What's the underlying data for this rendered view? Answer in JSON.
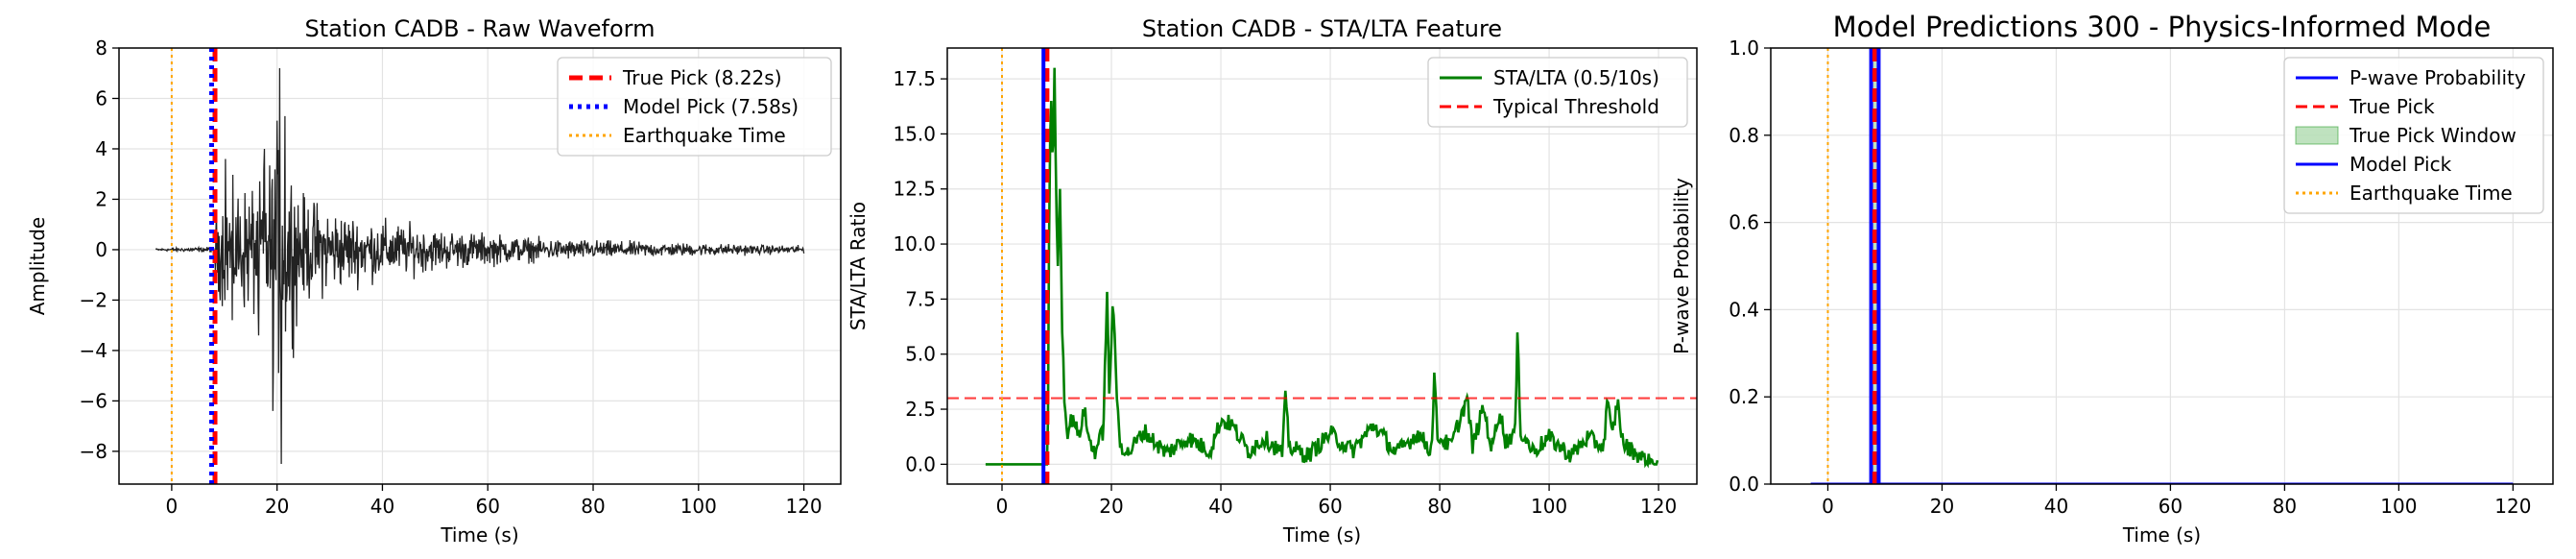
{
  "chart_data": [
    {
      "type": "line",
      "title": "Station CADB - Raw Waveform",
      "xlabel": "Time (s)",
      "ylabel": "Amplitude",
      "xlim": [
        -10,
        127
      ],
      "ylim": [
        -9.3,
        8
      ],
      "xticks": [
        0,
        20,
        40,
        60,
        80,
        100,
        120
      ],
      "yticks": [
        -8,
        -6,
        -4,
        -2,
        0,
        2,
        4,
        6,
        8
      ],
      "grid": true,
      "legend_position": "top-right",
      "legend": [
        {
          "label": "True Pick (8.22s)",
          "color": "#ff0000",
          "style": "dashed-thick"
        },
        {
          "label": "Model Pick (7.58s)",
          "color": "#0000ff",
          "style": "dotted-thick"
        },
        {
          "label": "Earthquake Time",
          "color": "#ffa500",
          "style": "dotted"
        }
      ],
      "vlines": [
        {
          "x": 8.22,
          "color": "#ff0000",
          "style": "dashed-thick"
        },
        {
          "x": 7.58,
          "color": "#0000ff",
          "style": "dotted-thick"
        },
        {
          "x": 0,
          "color": "#ffa500",
          "style": "dotted"
        }
      ],
      "waveform_series": {
        "color": "#222222",
        "time_range": [
          -3,
          120
        ],
        "envelope_keypoints": [
          [
            -3,
            0.06
          ],
          [
            8,
            0.15
          ],
          [
            8.2,
            2.0
          ],
          [
            10,
            3.0
          ],
          [
            15,
            3.5
          ],
          [
            19,
            5.0
          ],
          [
            20.5,
            7.2
          ],
          [
            21,
            6.0
          ],
          [
            25,
            2.8
          ],
          [
            35,
            1.8
          ],
          [
            50,
            1.1
          ],
          [
            70,
            0.6
          ],
          [
            90,
            0.4
          ],
          [
            120,
            0.2
          ]
        ],
        "peaks": [
          [
            20.5,
            7.2
          ],
          [
            20.8,
            -8.5
          ],
          [
            19.2,
            -6.4
          ],
          [
            21.5,
            5.3
          ],
          [
            17.6,
            4.0
          ],
          [
            10.2,
            3.6
          ],
          [
            16.5,
            -3.4
          ],
          [
            11.5,
            -2.8
          ]
        ]
      }
    },
    {
      "type": "line",
      "title": "Station CADB - STA/LTA Feature",
      "xlabel": "Time (s)",
      "ylabel": "STA/LTA Ratio",
      "xlim": [
        -10,
        127
      ],
      "ylim": [
        -0.9,
        18.9
      ],
      "xticks": [
        0,
        20,
        40,
        60,
        80,
        100,
        120
      ],
      "yticks": [
        0.0,
        2.5,
        5.0,
        7.5,
        10.0,
        12.5,
        15.0,
        17.5
      ],
      "grid": true,
      "legend_position": "top-right",
      "legend": [
        {
          "label": "STA/LTA (0.5/10s)",
          "color": "#008000",
          "style": "solid"
        },
        {
          "label": "Typical Threshold",
          "color": "#ff0000",
          "style": "dashed"
        }
      ],
      "threshold": 3.0,
      "vlines": [
        {
          "x": 8.22,
          "color": "#ff0000",
          "style": "dashed-thick"
        },
        {
          "x": 7.58,
          "color": "#0000ff",
          "style": "solid-thick"
        },
        {
          "x": 0,
          "color": "#ffa500",
          "style": "dotted"
        }
      ],
      "sta_lta_series": {
        "color": "#008000",
        "keypoints": [
          [
            -3,
            0
          ],
          [
            8.2,
            0
          ],
          [
            8.4,
            2
          ],
          [
            8.7,
            14
          ],
          [
            9.0,
            16.5
          ],
          [
            9.3,
            13
          ],
          [
            9.6,
            18
          ],
          [
            9.9,
            12
          ],
          [
            10.2,
            9
          ],
          [
            10.6,
            12.5
          ],
          [
            11,
            6
          ],
          [
            11.5,
            2.5
          ],
          [
            12,
            1.5
          ],
          [
            13,
            2.2
          ],
          [
            14,
            1.2
          ],
          [
            15,
            2.5
          ],
          [
            16,
            1.0
          ],
          [
            17,
            0.6
          ],
          [
            18.5,
            1.5
          ],
          [
            19.2,
            7.8
          ],
          [
            19.6,
            3
          ],
          [
            20.3,
            7.8
          ],
          [
            20.8,
            4
          ],
          [
            21.5,
            1
          ],
          [
            23,
            0.5
          ],
          [
            26,
            1.5
          ],
          [
            30,
            0.5
          ],
          [
            34,
            1.2
          ],
          [
            38,
            0.6
          ],
          [
            40,
            2
          ],
          [
            42,
            1.8
          ],
          [
            45,
            0.6
          ],
          [
            48,
            1.2
          ],
          [
            51.2,
            0.5
          ],
          [
            51.8,
            3.0
          ],
          [
            52.5,
            0.8
          ],
          [
            56,
            0.4
          ],
          [
            60,
            1.4
          ],
          [
            64,
            0.6
          ],
          [
            68,
            1.8
          ],
          [
            72,
            0.5
          ],
          [
            76,
            1.4
          ],
          [
            78.5,
            0.6
          ],
          [
            79,
            4.0
          ],
          [
            79.6,
            1.3
          ],
          [
            82,
            0.8
          ],
          [
            85,
            3.0
          ],
          [
            86,
            0.8
          ],
          [
            88,
            2.6
          ],
          [
            89.5,
            0.7
          ],
          [
            91,
            2.5
          ],
          [
            92,
            1.0
          ],
          [
            93.8,
            1.5
          ],
          [
            94.2,
            5.8
          ],
          [
            94.8,
            1.5
          ],
          [
            97,
            0.6
          ],
          [
            100,
            1.2
          ],
          [
            104,
            0.4
          ],
          [
            107,
            1.2
          ],
          [
            110,
            0.8
          ],
          [
            110.6,
            3.0
          ],
          [
            111.5,
            1.2
          ],
          [
            112.5,
            2.9
          ],
          [
            113.5,
            0.9
          ],
          [
            116,
            0.5
          ],
          [
            118,
            0.1
          ],
          [
            120,
            0.05
          ]
        ]
      }
    },
    {
      "type": "line",
      "title": "Model Predictions 300 - Physics-Informed Mode",
      "xlabel": "Time (s)",
      "ylabel": "P-wave Probability",
      "xlim": [
        -10,
        127
      ],
      "ylim": [
        0,
        1.0
      ],
      "xticks": [
        0,
        20,
        40,
        60,
        80,
        100,
        120
      ],
      "yticks": [
        0.0,
        0.2,
        0.4,
        0.6,
        0.8,
        1.0
      ],
      "grid": true,
      "legend_position": "top-right",
      "legend": [
        {
          "label": "P-wave Probability",
          "color": "#0000ff",
          "style": "solid"
        },
        {
          "label": "True Pick",
          "color": "#ff0000",
          "style": "dashed"
        },
        {
          "label": "True Pick Window",
          "color": "#2ca02c",
          "style": "patch"
        },
        {
          "label": "Model Pick",
          "color": "#0000ff",
          "style": "solid"
        },
        {
          "label": "Earthquake Time",
          "color": "#ffa500",
          "style": "dotted"
        }
      ],
      "true_pick_window": [
        7.6,
        8.85
      ],
      "vlines": [
        {
          "x": 7.58,
          "color": "#0000ff",
          "style": "solid-thick"
        },
        {
          "x": 8.22,
          "color": "#ff0000",
          "style": "dashed-thick"
        },
        {
          "x": 8.9,
          "color": "#0000ff",
          "style": "solid-thick"
        },
        {
          "x": 0,
          "color": "#ffa500",
          "style": "dotted"
        }
      ],
      "probability_series": {
        "color": "#0000ff",
        "keypoints": [
          [
            -3,
            0.0
          ],
          [
            120,
            0.0
          ]
        ]
      }
    }
  ]
}
